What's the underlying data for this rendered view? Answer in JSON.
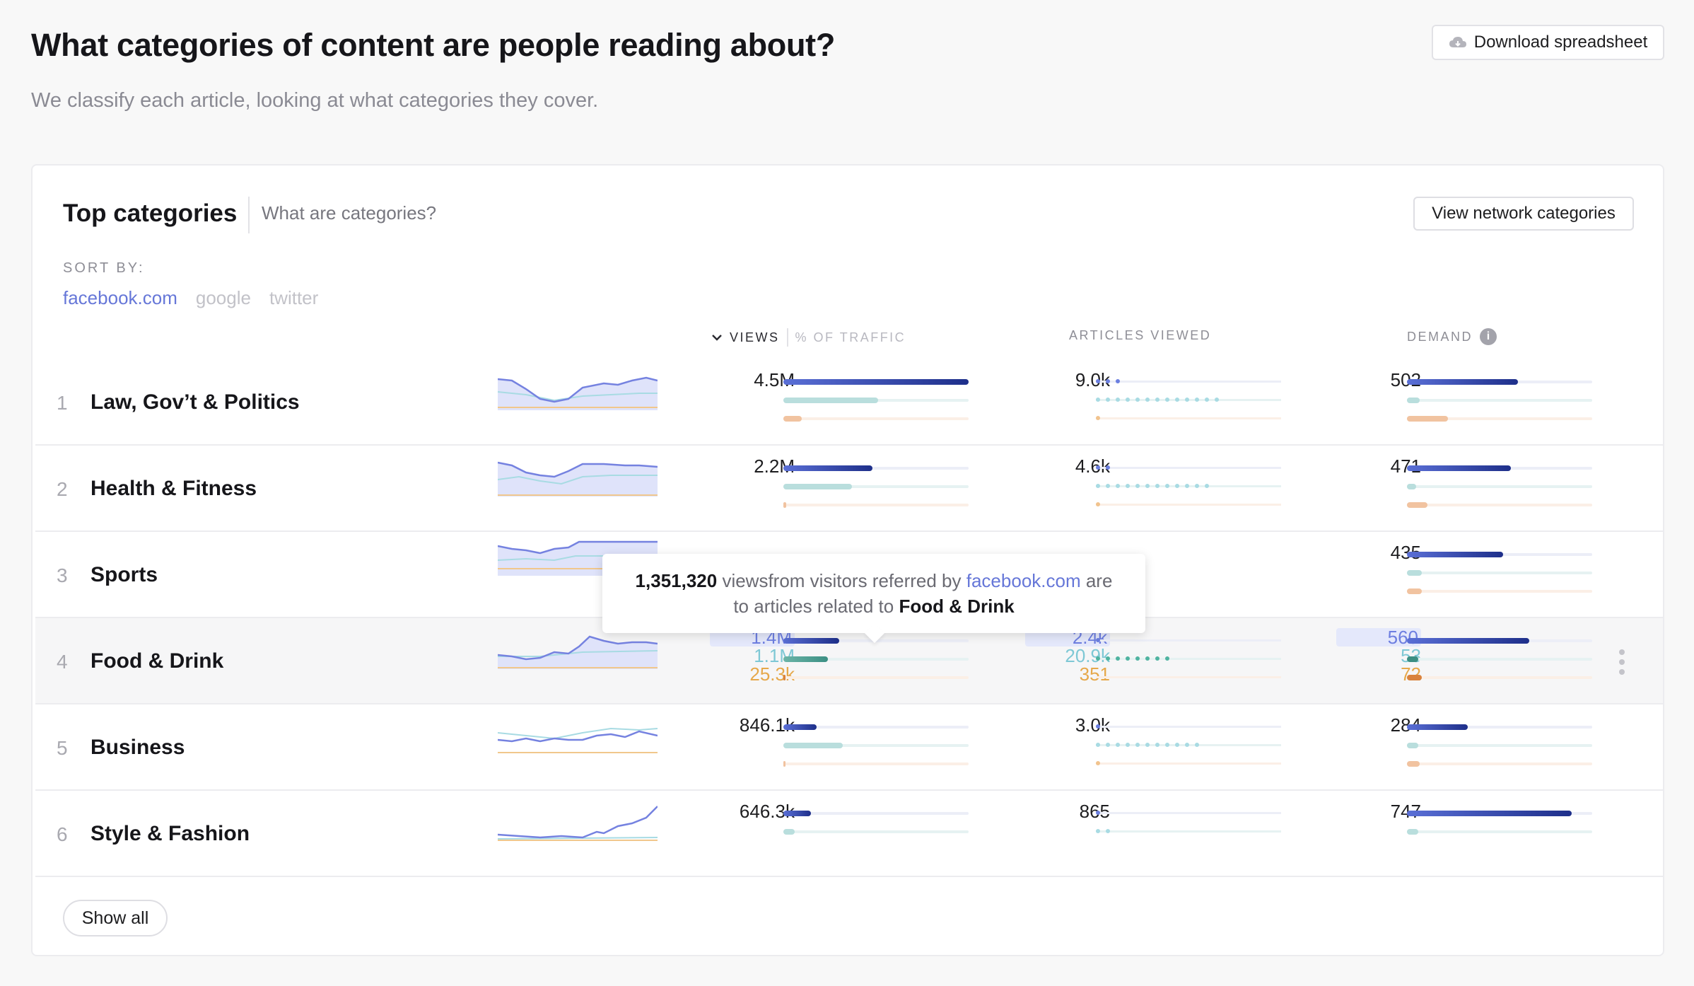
{
  "header": {
    "title": "What categories of content are people reading about?",
    "subtitle": "We classify each article, looking at what categories they cover.",
    "download_label": "Download spreadsheet"
  },
  "card": {
    "title": "Top categories",
    "help_link": "What are categories?",
    "network_button": "View network categories",
    "sort_by_label": "SORT BY:",
    "sort_options": [
      "facebook.com",
      "google",
      "twitter"
    ],
    "sort_active": "facebook.com",
    "columns": {
      "views": "VIEWS",
      "traffic": "% OF TRAFFIC",
      "articles": "ARTICLES VIEWED",
      "demand": "DEMAND"
    },
    "show_all_label": "Show all"
  },
  "rows": [
    {
      "rank": "1",
      "category": "Law, Gov’t & Politics",
      "views": "4.5M",
      "articles": "9.0k",
      "demand": "502",
      "views_bars": [
        1.0,
        0.51,
        0.1
      ],
      "articles_dots": [
        3,
        13,
        1
      ],
      "demand_bars": [
        0.6,
        0.07,
        0.22
      ]
    },
    {
      "rank": "2",
      "category": "Health & Fitness",
      "views": "2.2M",
      "articles": "4.6k",
      "demand": "471",
      "views_bars": [
        0.48,
        0.37,
        0.015
      ],
      "articles_dots": [
        2,
        12,
        1
      ],
      "demand_bars": [
        0.56,
        0.05,
        0.11
      ]
    },
    {
      "rank": "3",
      "category": "Sports",
      "views": "",
      "articles": "",
      "demand": "435",
      "views_bars": [
        0,
        0,
        0
      ],
      "articles_dots": [
        0,
        0,
        0
      ],
      "demand_bars": [
        0.52,
        0.08,
        0.08
      ]
    },
    {
      "rank": "4",
      "category": "Food & Drink",
      "views": "1.4M",
      "views_b": "1.1M",
      "views_c": "25.3k",
      "articles": "2.4k",
      "articles_b": "20.9k",
      "articles_c": "351",
      "demand": "560",
      "demand_b": "53",
      "demand_c": "72",
      "views_bars": [
        0.3,
        0.24,
        0.01
      ],
      "articles_dots": [
        1,
        8,
        0
      ],
      "demand_bars": [
        0.66,
        0.06,
        0.08
      ]
    },
    {
      "rank": "5",
      "category": "Business",
      "views": "846.1k",
      "articles": "3.0k",
      "demand": "284",
      "views_bars": [
        0.18,
        0.32,
        0.01
      ],
      "articles_dots": [
        1,
        11,
        1
      ],
      "demand_bars": [
        0.33,
        0.06,
        0.07
      ]
    },
    {
      "rank": "6",
      "category": "Style & Fashion",
      "views": "646.3k",
      "articles": "865",
      "demand": "747",
      "views_bars": [
        0.15,
        0.06,
        0
      ],
      "articles_dots": [
        1,
        2,
        0
      ],
      "demand_bars": [
        0.89,
        0.06,
        0
      ]
    }
  ],
  "tooltip": {
    "count": "1,351,320",
    "text1": " viewsfrom visitors referred by ",
    "source": "facebook.com",
    "text2": " are",
    "text3": "to articles related to ",
    "category": "Food & Drink"
  },
  "colors": {
    "accent": "#6677d8",
    "bar_primary": "#1e2f8a",
    "bar_secondary": "#7fbfb8",
    "bar_tertiary": "#e8b892"
  }
}
